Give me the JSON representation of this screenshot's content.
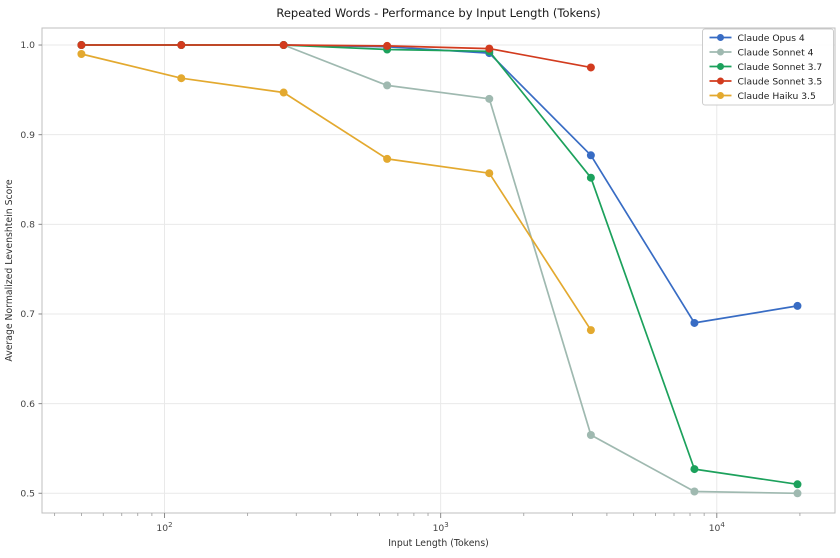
{
  "chart_data": {
    "type": "line",
    "title": "Repeated Words - Performance by Input Length (Tokens)",
    "xlabel": "Input Length (Tokens)",
    "ylabel": "Average Normalized Levenshtein Score",
    "x_scale": "log",
    "y_scale": "linear",
    "xlim": [
      36,
      26800
    ],
    "ylim": [
      0.478,
      1.019
    ],
    "x_major_ticks": [
      100,
      1000,
      10000
    ],
    "x_major_tick_labels": [
      "10^2",
      "10^3",
      "10^4"
    ],
    "x_minor_ticks": [
      40,
      50,
      60,
      70,
      80,
      90,
      200,
      300,
      400,
      500,
      600,
      700,
      800,
      900,
      2000,
      3000,
      4000,
      5000,
      6000,
      7000,
      8000,
      9000,
      20000
    ],
    "y_ticks": [
      0.5,
      0.6,
      0.7,
      0.8,
      0.9,
      1.0
    ],
    "grid": true,
    "grid_color": "#e9e9e9",
    "spine_color": "#bfbfbf",
    "background_color": "#ffffff",
    "legend_position": "upper right",
    "series": [
      {
        "name": "Claude Opus 4",
        "color": "#386cc4",
        "x": [
          50,
          115,
          270,
          640,
          1500,
          3500,
          8300,
          19600
        ],
        "y": [
          1.0,
          1.0,
          1.0,
          0.998,
          0.991,
          0.877,
          0.69,
          0.709
        ]
      },
      {
        "name": "Claude Sonnet 4",
        "color": "#9fb9b0",
        "x": [
          50,
          115,
          270,
          640,
          1500,
          3500,
          8300,
          19600
        ],
        "y": [
          1.0,
          1.0,
          1.0,
          0.955,
          0.94,
          0.565,
          0.502,
          0.5
        ]
      },
      {
        "name": "Claude Sonnet 3.7",
        "color": "#1ca15c",
        "x": [
          50,
          115,
          270,
          640,
          1500,
          3500,
          8300,
          19600
        ],
        "y": [
          1.0,
          1.0,
          1.0,
          0.995,
          0.993,
          0.852,
          0.527,
          0.51
        ]
      },
      {
        "name": "Claude Sonnet 3.5",
        "color": "#d23b1e",
        "x": [
          50,
          115,
          270,
          640,
          1500,
          3500
        ],
        "y": [
          1.0,
          1.0,
          1.0,
          0.999,
          0.996,
          0.975
        ]
      },
      {
        "name": "Claude Haiku 3.5",
        "color": "#e3a92f",
        "x": [
          50,
          115,
          270,
          640,
          1500,
          3500
        ],
        "y": [
          0.99,
          0.963,
          0.947,
          0.873,
          0.857,
          0.682
        ]
      }
    ]
  }
}
